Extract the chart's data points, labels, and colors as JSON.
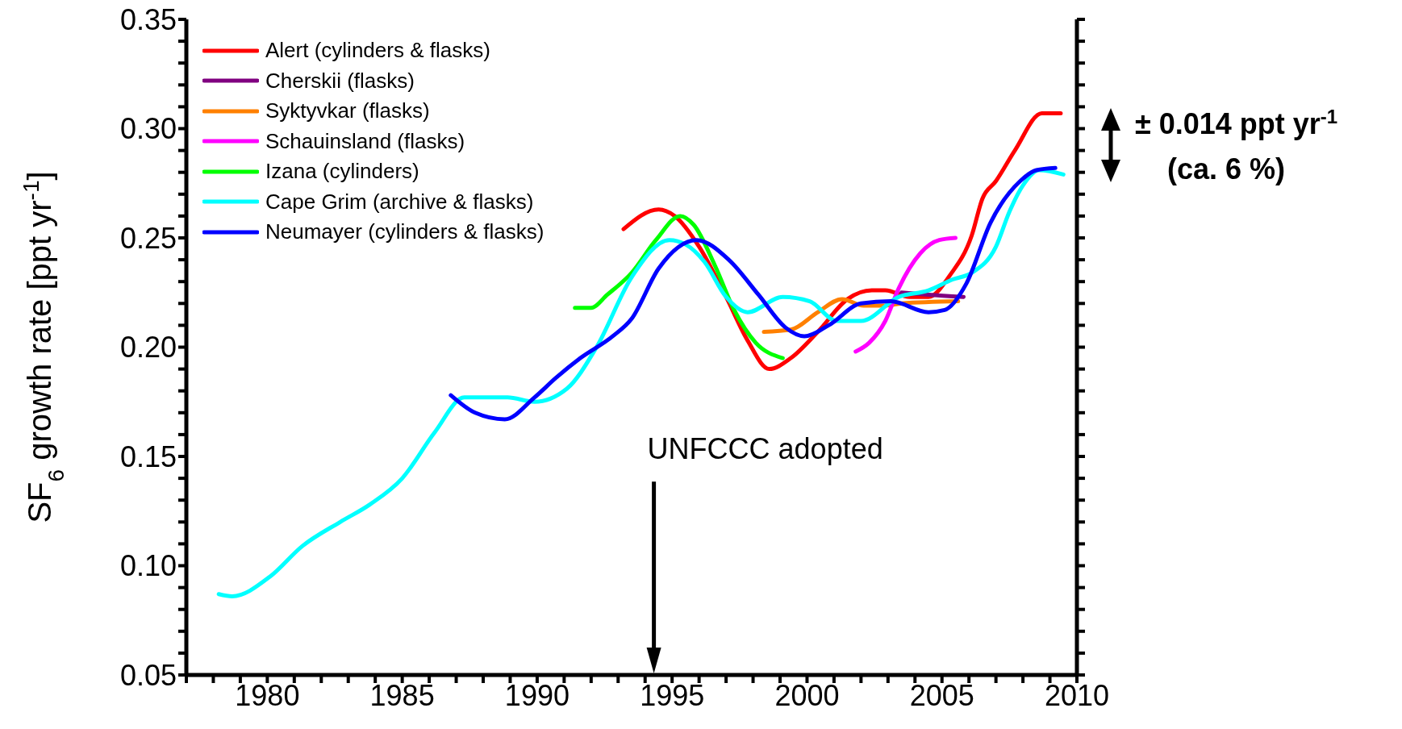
{
  "chart_data": {
    "type": "line",
    "ylabel": "SF$_{6}$ growth rate [ppt yr$^{-1}$]",
    "xlim": [
      1977,
      2010
    ],
    "ylim": [
      0.05,
      0.35
    ],
    "xticks": [
      {
        "value": 1977,
        "label": null
      },
      {
        "value": 1978,
        "label": null
      },
      {
        "value": 1979,
        "label": null
      },
      1980,
      {
        "value": 1981,
        "label": null
      },
      {
        "value": 1982,
        "label": null
      },
      {
        "value": 1983,
        "label": null
      },
      {
        "value": 1984,
        "label": null
      },
      1985,
      {
        "value": 1986,
        "label": null
      },
      {
        "value": 1987,
        "label": null
      },
      {
        "value": 1988,
        "label": null
      },
      {
        "value": 1989,
        "label": null
      },
      1990,
      {
        "value": 1991,
        "label": null
      },
      {
        "value": 1992,
        "label": null
      },
      {
        "value": 1993,
        "label": null
      },
      {
        "value": 1994,
        "label": null
      },
      1995,
      {
        "value": 1996,
        "label": null
      },
      {
        "value": 1997,
        "label": null
      },
      {
        "value": 1998,
        "label": null
      },
      {
        "value": 1999,
        "label": null
      },
      2000,
      {
        "value": 2001,
        "label": null
      },
      {
        "value": 2002,
        "label": null
      },
      {
        "value": 2003,
        "label": null
      },
      {
        "value": 2004,
        "label": null
      },
      2005,
      {
        "value": 2006,
        "label": null
      },
      {
        "value": 2007,
        "label": null
      },
      {
        "value": 2008,
        "label": null
      },
      {
        "value": 2009,
        "label": null
      },
      2010
    ],
    "yticks": [
      {
        "value": 0.05,
        "label": "0.05"
      },
      {
        "value": 0.06,
        "label": null
      },
      {
        "value": 0.07,
        "label": null
      },
      {
        "value": 0.08,
        "label": null
      },
      {
        "value": 0.09,
        "label": null
      },
      {
        "value": 0.1,
        "label": "0.10"
      },
      {
        "value": 0.11,
        "label": null
      },
      {
        "value": 0.12,
        "label": null
      },
      {
        "value": 0.13,
        "label": null
      },
      {
        "value": 0.14,
        "label": null
      },
      {
        "value": 0.15,
        "label": "0.15"
      },
      {
        "value": 0.16,
        "label": null
      },
      {
        "value": 0.17,
        "label": null
      },
      {
        "value": 0.18,
        "label": null
      },
      {
        "value": 0.19,
        "label": null
      },
      {
        "value": 0.2,
        "label": "0.20"
      },
      {
        "value": 0.21,
        "label": null
      },
      {
        "value": 0.22,
        "label": null
      },
      {
        "value": 0.23,
        "label": null
      },
      {
        "value": 0.24,
        "label": null
      },
      {
        "value": 0.25,
        "label": "0.25"
      },
      {
        "value": 0.26,
        "label": null
      },
      {
        "value": 0.27,
        "label": null
      },
      {
        "value": 0.28,
        "label": null
      },
      {
        "value": 0.29,
        "label": null
      },
      {
        "value": 0.3,
        "label": "0.30"
      },
      {
        "value": 0.31,
        "label": null
      },
      {
        "value": 0.32,
        "label": null
      },
      {
        "value": 0.33,
        "label": null
      },
      {
        "value": 0.34,
        "label": null
      },
      {
        "value": 0.35,
        "label": "0.35"
      }
    ],
    "grid": false,
    "legend": "top left",
    "annotations": [
      "UNFCCC adopted",
      "± 0.014 ppt yr$^{-1}$\n(ca. 6 %)"
    ],
    "series": [
      {
        "name": "Alert (cylinders & flasks)",
        "color": "#ff0000",
        "x": [
          1993.2,
          1994.5,
          1995.1,
          1996.0,
          1997.0,
          1997.8,
          1998.6,
          1999.4,
          2000.4,
          2001.5,
          2002.4,
          2002.9,
          2003.8,
          2004.5,
          2005.3,
          2006.1,
          2006.5,
          2007.0,
          2007.7,
          2008.7,
          2009.4
        ],
        "values": [
          0.254,
          0.263,
          0.26,
          0.246,
          0.223,
          0.203,
          0.19,
          0.195,
          0.207,
          0.222,
          0.226,
          0.226,
          0.223,
          0.223,
          0.233,
          0.251,
          0.268,
          0.276,
          0.29,
          0.307,
          0.307
        ]
      },
      {
        "name": "Cherskii (flasks)",
        "color": "#800080",
        "x": [
          2003.5,
          2004.5,
          2005.8
        ],
        "values": [
          0.225,
          0.224,
          0.223
        ]
      },
      {
        "name": "Syktyvkar (flasks)",
        "color": "#ff8000",
        "x": [
          1998.4,
          1999.4,
          2000.4,
          2001.3,
          2002.1,
          2002.9,
          2003.5,
          2005.6
        ],
        "values": [
          0.207,
          0.208,
          0.216,
          0.222,
          0.219,
          0.219,
          0.22,
          0.221
        ]
      },
      {
        "name": "Schauinsland (flasks)",
        "color": "#ff00ff",
        "x": [
          2001.8,
          2002.3,
          2002.9,
          2003.4,
          2004.2,
          2004.9,
          2005.5
        ],
        "values": [
          0.198,
          0.202,
          0.212,
          0.227,
          0.243,
          0.249,
          0.25
        ]
      },
      {
        "name": "Izana (cylinders)",
        "color": "#00ff00",
        "x": [
          1991.4,
          1992.0,
          1992.6,
          1993.5,
          1994.4,
          1995.3,
          1995.8,
          1996.6,
          1997.3,
          1998.1,
          1999.1
        ],
        "values": [
          0.218,
          0.218,
          0.224,
          0.234,
          0.249,
          0.26,
          0.256,
          0.237,
          0.217,
          0.202,
          0.195
        ]
      },
      {
        "name": "Cape Grim (archive & flasks)",
        "color": "#00ffff",
        "x": [
          1978.2,
          1978.7,
          1980.1,
          1981.3,
          1982.7,
          1983.8,
          1985.0,
          1986.2,
          1987.3,
          1988.2,
          1988.9,
          1989.9,
          1991.1,
          1992.2,
          1993.5,
          1994.9,
          1995.5,
          1996.2,
          1997.0,
          1997.8,
          1999.1,
          2000.1,
          2001.1,
          2002.0,
          2003.4,
          2004.5,
          2005.4,
          2006.1,
          2007.0,
          2007.5,
          2008.0,
          2008.6,
          2009.5
        ],
        "values": [
          0.087,
          0.086,
          0.095,
          0.109,
          0.12,
          0.128,
          0.14,
          0.161,
          0.177,
          0.177,
          0.177,
          0.175,
          0.181,
          0.2,
          0.232,
          0.249,
          0.247,
          0.239,
          0.223,
          0.216,
          0.223,
          0.221,
          0.212,
          0.212,
          0.223,
          0.226,
          0.231,
          0.234,
          0.246,
          0.262,
          0.274,
          0.281,
          0.279
        ]
      },
      {
        "name": "Neumayer (cylinders & flasks)",
        "color": "#0000ff",
        "x": [
          1986.8,
          1987.7,
          1988.8,
          1989.9,
          1990.7,
          1991.6,
          1992.8,
          1993.5,
          1994.5,
          1995.9,
          1997.1,
          1998.2,
          1999.2,
          1999.9,
          2000.8,
          2002.0,
          2003.1,
          2004.5,
          2005.1,
          2005.9,
          2006.8,
          2007.9,
          2008.5,
          2009.2
        ],
        "values": [
          0.178,
          0.17,
          0.167,
          0.177,
          0.186,
          0.195,
          0.205,
          0.213,
          0.236,
          0.249,
          0.24,
          0.224,
          0.209,
          0.205,
          0.21,
          0.22,
          0.221,
          0.216,
          0.217,
          0.229,
          0.257,
          0.276,
          0.281,
          0.282
        ]
      }
    ]
  }
}
